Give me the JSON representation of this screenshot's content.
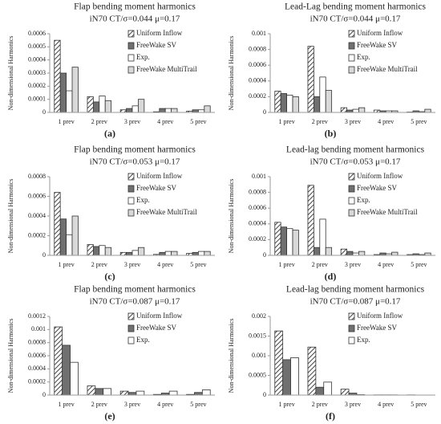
{
  "chart_data": [
    {
      "type": "bar",
      "title": "Flap bending moment harmonics",
      "subtitle": "iN70 CT/σ=0.044 μ=0.17",
      "y_label": "Non-dimensional Harmonics",
      "label": "(a)",
      "categories": [
        "1 prev",
        "2 prev",
        "3 prev",
        "4 prev",
        "5 prev"
      ],
      "ylim": [
        0,
        0.0006
      ],
      "yticks": [
        0,
        0.0001,
        0.0002,
        0.0003,
        0.0004,
        0.0005,
        0.0006
      ],
      "series": [
        {
          "name": "Uniform Inflow",
          "color": "#555555",
          "pattern": "hatch",
          "values": [
            0.00055,
            0.00012,
            2e-05,
            5e-06,
            1e-05
          ]
        },
        {
          "name": "FreeWake SV",
          "color": "#707070",
          "values": [
            0.0003,
            8e-05,
            3e-05,
            3e-05,
            2e-05
          ]
        },
        {
          "name": "Exp.",
          "color": "#ffffff",
          "values": [
            0.000165,
            0.000125,
            5e-05,
            3e-05,
            2e-05
          ]
        },
        {
          "name": "FreeWake MultiTrail",
          "color": "#d9d9d9",
          "values": [
            0.000345,
            9e-05,
            0.0001,
            3e-05,
            5e-05
          ]
        }
      ]
    },
    {
      "type": "bar",
      "title": "Lead-Lag bending moment harmonics",
      "subtitle": "iN70 CT/σ=0.044 μ=0.17",
      "y_label": "Non-dimensional Harmonics",
      "label": "(b)",
      "categories": [
        "1 prev",
        "2 prev",
        "3 prev",
        "4 prev",
        "5 prev"
      ],
      "ylim": [
        0,
        0.001
      ],
      "yticks": [
        0,
        0.0002,
        0.0004,
        0.0006,
        0.0008,
        0.001
      ],
      "series": [
        {
          "name": "Uniform Inflow",
          "color": "#555555",
          "pattern": "hatch",
          "values": [
            0.00027,
            0.00084,
            6e-05,
            3e-05,
            5e-06
          ]
        },
        {
          "name": "FreeWake SV",
          "color": "#707070",
          "values": [
            0.00024,
            0.0002,
            3e-05,
            2e-05,
            2e-05
          ]
        },
        {
          "name": "Exp.",
          "color": "#ffffff",
          "values": [
            0.00022,
            0.00045,
            4e-05,
            2e-05,
            1e-05
          ]
        },
        {
          "name": "FreeWake MultiTrail",
          "color": "#d9d9d9",
          "values": [
            0.0002,
            0.00028,
            6e-05,
            2e-05,
            4e-05
          ]
        }
      ]
    },
    {
      "type": "bar",
      "title": "Flap bending moment harmonics",
      "subtitle": "iN70 CT/σ=0.053 μ=0.17",
      "y_label": "Non-dimensional Harmonics",
      "label": "(c)",
      "categories": [
        "1 prev",
        "2 prev",
        "3 prev",
        "4 prev",
        "5 prev"
      ],
      "ylim": [
        0,
        0.0008
      ],
      "yticks": [
        0,
        0.0002,
        0.0004,
        0.0006,
        0.0008
      ],
      "series": [
        {
          "name": "Uniform Inflow",
          "color": "#555555",
          "pattern": "hatch",
          "values": [
            0.00064,
            0.00011,
            3e-05,
            1e-05,
            2e-05
          ]
        },
        {
          "name": "FreeWake SV",
          "color": "#707070",
          "values": [
            0.00037,
            9e-05,
            3e-05,
            3e-05,
            3e-05
          ]
        },
        {
          "name": "Exp.",
          "color": "#ffffff",
          "values": [
            0.00021,
            0.0001,
            5e-05,
            4e-05,
            4e-05
          ]
        },
        {
          "name": "FreeWake MultiTrail",
          "color": "#d9d9d9",
          "values": [
            0.0004,
            8e-05,
            8e-05,
            4e-05,
            4e-05
          ]
        }
      ]
    },
    {
      "type": "bar",
      "title": "Lead-lag bending moment harmonics",
      "subtitle": "iN70 CT/σ=0.053 μ=0.17",
      "y_label": "Non-dimensional Harmonics",
      "label": "(d)",
      "categories": [
        "1 prev",
        "2 prev",
        "3 prev",
        "4 prev",
        "5 prev"
      ],
      "ylim": [
        0,
        0.001
      ],
      "yticks": [
        0,
        0.0002,
        0.0004,
        0.0006,
        0.0008,
        0.001
      ],
      "series": [
        {
          "name": "Uniform Inflow",
          "color": "#555555",
          "pattern": "hatch",
          "values": [
            0.00042,
            0.00089,
            8e-05,
            1e-05,
            1e-05
          ]
        },
        {
          "name": "FreeWake SV",
          "color": "#707070",
          "values": [
            0.00036,
            0.0001,
            5e-05,
            3e-05,
            2e-05
          ]
        },
        {
          "name": "Exp.",
          "color": "#ffffff",
          "values": [
            0.00034,
            0.00046,
            3e-05,
            2e-05,
            1e-05
          ]
        },
        {
          "name": "FreeWake MultiTrail",
          "color": "#d9d9d9",
          "values": [
            0.00032,
            0.0001,
            5e-05,
            4e-05,
            3e-05
          ]
        }
      ]
    },
    {
      "type": "bar",
      "title": "Flap bending moment harmonics",
      "subtitle": "iN70 CT/σ=0.087 μ=0.17",
      "y_label": "Non-dimensional Harmonics",
      "label": "(e)",
      "categories": [
        "1 prev",
        "2 prev",
        "3 prev",
        "4 prev",
        "5 prev"
      ],
      "ylim": [
        0,
        0.0012
      ],
      "yticks": [
        0,
        0.0002,
        0.0004,
        0.0006,
        0.0008,
        0.001,
        0.0012
      ],
      "series": [
        {
          "name": "Uniform Inflow",
          "color": "#555555",
          "pattern": "hatch",
          "values": [
            0.00104,
            0.00014,
            6e-05,
            1e-05,
            1e-05
          ]
        },
        {
          "name": "FreeWake SV",
          "color": "#707070",
          "values": [
            0.00076,
            0.0001,
            4e-05,
            3e-05,
            4e-05
          ]
        },
        {
          "name": "Exp.",
          "color": "#ffffff",
          "values": [
            0.0005,
            0.0001,
            6e-05,
            6e-05,
            8e-05
          ]
        }
      ]
    },
    {
      "type": "bar",
      "title": "Lead-lag bending moment harmonics",
      "subtitle": "iN70 CT/σ=0.087 μ=0.17",
      "y_label": "Non-dimensional Harmonics",
      "label": "(f)",
      "categories": [
        "1 prev",
        "2 prev",
        "3 prev",
        "4 prev",
        "5 prev"
      ],
      "ylim": [
        0,
        0.002
      ],
      "yticks": [
        0,
        0.0005,
        0.001,
        0.0015,
        0.002
      ],
      "series": [
        {
          "name": "Uniform Inflow",
          "color": "#555555",
          "pattern": "hatch",
          "values": [
            0.00163,
            0.00122,
            0.00015,
            5e-06,
            5e-06
          ]
        },
        {
          "name": "FreeWake SV",
          "color": "#707070",
          "values": [
            0.0009,
            0.0002,
            5e-05,
            5e-06,
            0
          ]
        },
        {
          "name": "Exp.",
          "color": "#ffffff",
          "values": [
            0.00095,
            0.00033,
            1e-05,
            5e-06,
            0
          ]
        }
      ]
    }
  ]
}
